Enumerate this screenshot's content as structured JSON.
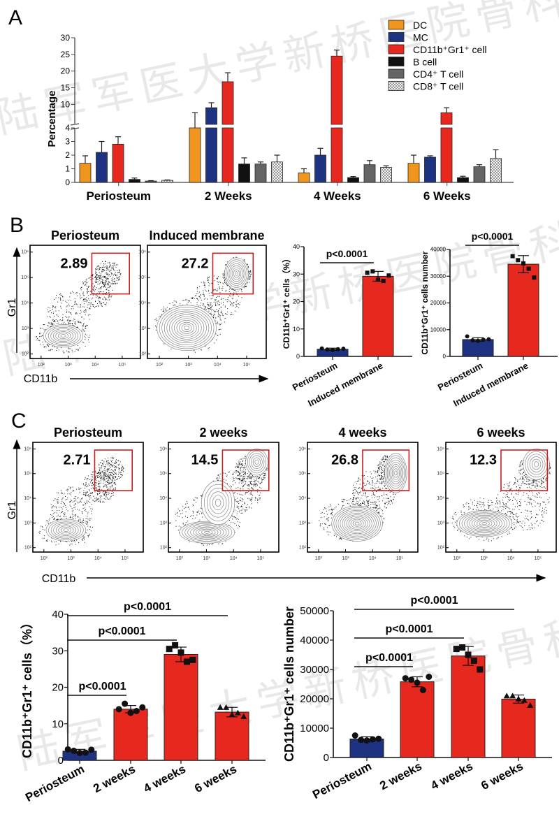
{
  "panels": {
    "A": "A",
    "B": "B",
    "C": "C"
  },
  "watermark": "陆军军医大学新桥医院骨科",
  "colors": {
    "DC": "#f0961e",
    "MC": "#1e3282",
    "CD11b_Gr1": "#e6281e",
    "B_cell": "#111111",
    "CD4_T": "#646464",
    "CD8_T": "#dddddd",
    "gate": "#c81e1e"
  },
  "chart_data": [
    {
      "id": "A",
      "type": "bar",
      "title": "",
      "xlabel": "",
      "ylabel": "Percentage",
      "y_axis_break": {
        "lower": [
          0,
          4
        ],
        "upper": [
          4,
          30
        ]
      },
      "yticks_lower": [
        "0",
        "1",
        "2",
        "3",
        "4"
      ],
      "yticks_upper": [
        "10",
        "15",
        "20",
        "25",
        "30"
      ],
      "categories": [
        "Periosteum",
        "2 Weeks",
        "4 Weeks",
        "6 Weeks"
      ],
      "legend_position": "top-right",
      "series": [
        {
          "name": "DC",
          "key": "DC",
          "values": [
            1.4,
            4.0,
            0.7,
            1.4
          ],
          "errors": [
            0.55,
            3.5,
            0.3,
            0.6
          ]
        },
        {
          "name": "MC",
          "key": "MC",
          "values": [
            2.2,
            9.0,
            2.0,
            1.85
          ],
          "errors": [
            0.8,
            1.5,
            0.5,
            0.1
          ]
        },
        {
          "name": "CD11b⁺Gr1⁺ cell",
          "key": "CD11b_Gr1",
          "values": [
            2.8,
            16.8,
            24.5,
            7.5
          ],
          "errors": [
            0.55,
            2.7,
            1.8,
            1.5
          ]
        },
        {
          "name": "B cell",
          "key": "B_cell",
          "values": [
            0.22,
            1.35,
            0.35,
            0.35
          ],
          "errors": [
            0.1,
            0.45,
            0.08,
            0.1
          ]
        },
        {
          "name": "CD4⁺ T cell",
          "key": "CD4_T",
          "values": [
            0.1,
            1.35,
            1.3,
            1.15
          ],
          "errors": [
            0.03,
            0.15,
            0.3,
            0.15
          ]
        },
        {
          "name": "CD8⁺ T cell",
          "key": "CD8_T",
          "values": [
            0.15,
            1.5,
            1.1,
            1.75
          ],
          "errors": [
            0.03,
            0.5,
            0.12,
            0.65
          ]
        }
      ]
    },
    {
      "id": "B-pct",
      "type": "bar",
      "ylabel": "CD11b⁺Gr1⁺ cells（%）",
      "ylim": [
        0,
        40
      ],
      "yticks": [
        "0",
        "10",
        "20",
        "30",
        "40"
      ],
      "categories": [
        "Periosteum",
        "Induced membrane"
      ],
      "values": [
        2.6,
        29.2
      ],
      "errors": [
        0.4,
        1.8
      ],
      "points": [
        [
          2.9,
          2.5,
          2.3,
          2.6,
          2.8
        ],
        [
          30.5,
          31.0,
          28.0,
          27.5,
          29.5
        ]
      ],
      "markers": [
        "circle",
        "square"
      ],
      "bar_colors": [
        "MC",
        "CD11b_Gr1"
      ],
      "significance": [
        {
          "from": 0,
          "to": 1,
          "label": "p<0.0001"
        }
      ]
    },
    {
      "id": "B-num",
      "type": "bar",
      "ylabel": "CD11b⁺Gr1⁺ cells number",
      "ylim": [
        0,
        40000
      ],
      "yticks": [
        "0",
        "10000",
        "20000",
        "30000",
        "40000"
      ],
      "categories": [
        "Periosteum",
        "Induced membrane"
      ],
      "values": [
        6300,
        34500
      ],
      "errors": [
        700,
        3200
      ],
      "points": [
        [
          7500,
          6000,
          5800,
          6200,
          6400
        ],
        [
          37500,
          36000,
          34800,
          32800,
          29500
        ]
      ],
      "markers": [
        "circle",
        "square"
      ],
      "bar_colors": [
        "MC",
        "CD11b_Gr1"
      ],
      "significance": [
        {
          "from": 0,
          "to": 1,
          "label": "p<0.0001"
        }
      ]
    },
    {
      "id": "C-pct",
      "type": "bar",
      "ylabel": "CD11b⁺Gr1⁺ cells（%）",
      "ylim": [
        0,
        40
      ],
      "yticks": [
        "0",
        "10",
        "20",
        "30",
        "40"
      ],
      "categories": [
        "Periosteum",
        "2 weeks",
        "4 weeks",
        "6 weeks"
      ],
      "values": [
        2.5,
        14.0,
        29.0,
        13.2
      ],
      "errors": [
        0.5,
        1.0,
        2.0,
        1.3
      ],
      "points": [
        [
          3.0,
          2.6,
          2.0,
          2.1,
          2.9
        ],
        [
          14.0,
          15.5,
          13.0,
          13.5,
          14.5
        ],
        [
          30.5,
          31.5,
          29.5,
          27.0,
          27.5
        ],
        [
          14.5,
          14.5,
          12.5,
          13.0,
          12.0
        ]
      ],
      "markers": [
        "circle",
        "circle",
        "square",
        "triangle"
      ],
      "bar_colors": [
        "MC",
        "CD11b_Gr1",
        "CD11b_Gr1",
        "CD11b_Gr1"
      ],
      "significance": [
        {
          "from": 0,
          "to": 1,
          "label": "p<0.0001"
        },
        {
          "from": 0,
          "to": 2,
          "label": "p<0.0001"
        },
        {
          "from": 0,
          "to": 3,
          "label": "p<0.0001"
        }
      ]
    },
    {
      "id": "C-num",
      "type": "bar",
      "ylabel": "CD11b⁺Gr1⁺ cells number",
      "ylim": [
        0,
        50000
      ],
      "yticks": [
        "0",
        "10000",
        "20000",
        "30000",
        "40000",
        "50000"
      ],
      "categories": [
        "Periosteum",
        "2 weeks",
        "4 weeks",
        "6 weeks"
      ],
      "values": [
        6300,
        25800,
        34600,
        19900
      ],
      "errors": [
        800,
        1700,
        3200,
        1400
      ],
      "points": [
        [
          7500,
          6000,
          5800,
          6200,
          6400
        ],
        [
          27000,
          26500,
          25500,
          23000,
          27500
        ],
        [
          37000,
          37500,
          35000,
          33000,
          30000
        ],
        [
          21000,
          21000,
          20000,
          19500,
          17800
        ]
      ],
      "markers": [
        "circle",
        "circle",
        "square",
        "triangle"
      ],
      "bar_colors": [
        "MC",
        "CD11b_Gr1",
        "CD11b_Gr1",
        "CD11b_Gr1"
      ],
      "significance": [
        {
          "from": 0,
          "to": 1,
          "label": "p<0.0001"
        },
        {
          "from": 0,
          "to": 2,
          "label": "p<0.0001"
        },
        {
          "from": 0,
          "to": 3,
          "label": "p<0.0001"
        }
      ]
    }
  ],
  "flow": {
    "y_axis_label": "Gr1",
    "x_axis_label": "CD11b",
    "ticks": [
      "10²",
      "10³",
      "10⁴",
      "10⁵",
      "10⁶"
    ],
    "B": [
      {
        "title": "Periosteum",
        "gate_value": "2.89"
      },
      {
        "title": "Induced membrane",
        "gate_value": "27.2"
      }
    ],
    "C": [
      {
        "title": "Periosteum",
        "gate_value": "2.71"
      },
      {
        "title": "2 weeks",
        "gate_value": "14.5"
      },
      {
        "title": "4 weeks",
        "gate_value": "26.8"
      },
      {
        "title": "6 weeks",
        "gate_value": "12.3"
      }
    ]
  }
}
